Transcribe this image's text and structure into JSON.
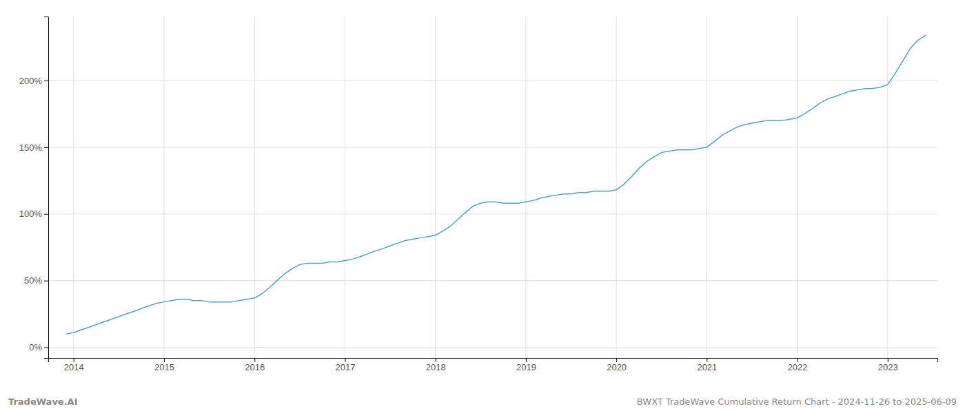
{
  "chart_data": {
    "type": "line",
    "title": "BWXT TradeWave Cumulative Return Chart - 2024-11-26 to 2025-06-09",
    "annotations": [
      "TradeWave.AI"
    ],
    "color": "#4da6c8",
    "grid": true,
    "xlim": [
      2013.72,
      2023.55
    ],
    "xticks": [
      2014,
      2015,
      2016,
      2017,
      2018,
      2019,
      2020,
      2021,
      2022,
      2023
    ],
    "ylim": [
      -8,
      248
    ],
    "yticks": [
      {
        "value": 0,
        "label": "0%"
      },
      {
        "value": 50,
        "label": "50%"
      },
      {
        "value": 100,
        "label": "100%"
      },
      {
        "value": 150,
        "label": "150%"
      },
      {
        "value": 200,
        "label": "200%"
      }
    ],
    "x": [
      2013.92,
      2014.0,
      2014.08,
      2014.17,
      2014.25,
      2014.33,
      2014.42,
      2014.5,
      2014.58,
      2014.67,
      2014.75,
      2014.83,
      2014.92,
      2015.0,
      2015.08,
      2015.17,
      2015.25,
      2015.33,
      2015.42,
      2015.5,
      2015.58,
      2015.67,
      2015.75,
      2015.83,
      2015.92,
      2016.0,
      2016.08,
      2016.17,
      2016.25,
      2016.33,
      2016.42,
      2016.5,
      2016.58,
      2016.67,
      2016.75,
      2016.83,
      2016.92,
      2017.0,
      2017.08,
      2017.17,
      2017.25,
      2017.33,
      2017.42,
      2017.5,
      2017.58,
      2017.67,
      2017.75,
      2017.83,
      2017.92,
      2018.0,
      2018.08,
      2018.17,
      2018.25,
      2018.33,
      2018.42,
      2018.5,
      2018.58,
      2018.67,
      2018.75,
      2018.83,
      2018.92,
      2019.0,
      2019.08,
      2019.17,
      2019.25,
      2019.33,
      2019.42,
      2019.5,
      2019.58,
      2019.67,
      2019.75,
      2019.83,
      2019.92,
      2020.0,
      2020.08,
      2020.17,
      2020.25,
      2020.33,
      2020.42,
      2020.5,
      2020.58,
      2020.67,
      2020.75,
      2020.83,
      2020.92,
      2021.0,
      2021.08,
      2021.17,
      2021.25,
      2021.33,
      2021.42,
      2021.5,
      2021.58,
      2021.67,
      2021.75,
      2021.83,
      2021.92,
      2022.0,
      2022.08,
      2022.17,
      2022.25,
      2022.33,
      2022.42,
      2022.5,
      2022.58,
      2022.67,
      2022.75,
      2022.83,
      2022.92,
      2023.0,
      2023.08,
      2023.17,
      2023.25,
      2023.33,
      2023.42
    ],
    "values": [
      10,
      11,
      13,
      15,
      17,
      19,
      21,
      23,
      25,
      27,
      29,
      31,
      33,
      34,
      35,
      36,
      36,
      35,
      35,
      34,
      34,
      34,
      34,
      35,
      36,
      37,
      40,
      45,
      50,
      55,
      59,
      62,
      63,
      63,
      63,
      64,
      64,
      65,
      66,
      68,
      70,
      72,
      74,
      76,
      78,
      80,
      81,
      82,
      83,
      84,
      87,
      91,
      96,
      101,
      106,
      108,
      109,
      109,
      108,
      108,
      108,
      109,
      110,
      112,
      113,
      114,
      115,
      115,
      116,
      116,
      117,
      117,
      117,
      118,
      122,
      128,
      134,
      139,
      143,
      146,
      147,
      148,
      148,
      148,
      149,
      150,
      154,
      159,
      162,
      165,
      167,
      168,
      169,
      170,
      170,
      170,
      171,
      172,
      175,
      179,
      183,
      186,
      188,
      190,
      192,
      193,
      194,
      194,
      195,
      197,
      205,
      215,
      224,
      230,
      234
    ]
  }
}
